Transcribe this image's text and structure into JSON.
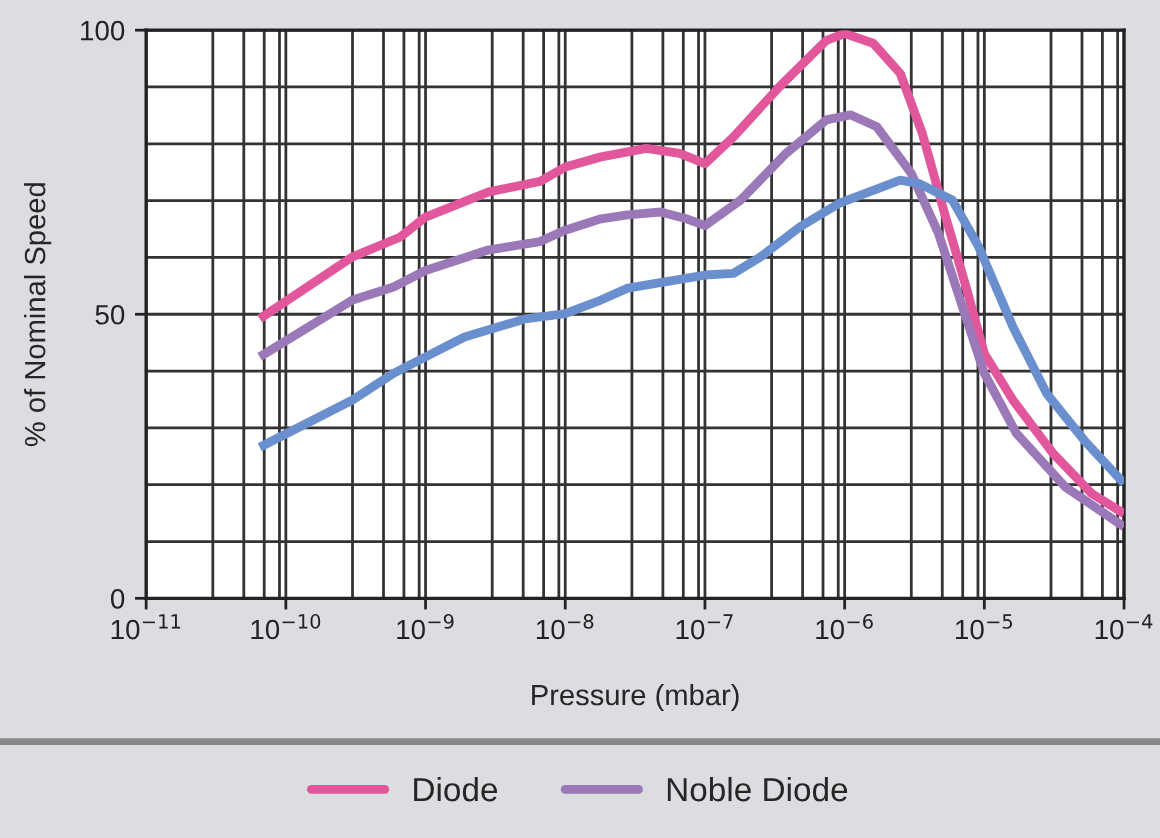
{
  "chart_data": {
    "type": "line",
    "xlabel": "Pressure (mbar)",
    "ylabel": "% of Nominal Speed",
    "log": "x",
    "grid": true,
    "legend": "bottom",
    "line_style": "solid",
    "marker": "none",
    "xlim": [
      1e-11,
      0.0001
    ],
    "ylim": [
      0,
      100
    ],
    "xticks": [
      {
        "value": 1e-11,
        "label": "10$^{−11}$"
      },
      {
        "value": 3e-11,
        "label": null
      },
      {
        "value": 5e-11,
        "label": null
      },
      {
        "value": 7e-11,
        "label": null
      },
      {
        "value": 9e-11,
        "label": null
      },
      {
        "value": 1e-10,
        "label": "10$^{−10}$"
      },
      {
        "value": 3e-10,
        "label": null
      },
      {
        "value": 5e-10,
        "label": null
      },
      {
        "value": 7e-10,
        "label": null
      },
      {
        "value": 9e-10,
        "label": null
      },
      {
        "value": 1e-09,
        "label": "10$^{−9}$"
      },
      {
        "value": 3e-09,
        "label": null
      },
      {
        "value": 5e-09,
        "label": null
      },
      {
        "value": 7e-09,
        "label": null
      },
      {
        "value": 9e-09,
        "label": null
      },
      {
        "value": 1e-08,
        "label": "10$^{−8}$"
      },
      {
        "value": 3e-08,
        "label": null
      },
      {
        "value": 5e-08,
        "label": null
      },
      {
        "value": 7e-08,
        "label": null
      },
      {
        "value": 9e-08,
        "label": null
      },
      {
        "value": 1e-07,
        "label": "10$^{−7}$"
      },
      {
        "value": 3e-07,
        "label": null
      },
      {
        "value": 5e-07,
        "label": null
      },
      {
        "value": 7e-07,
        "label": null
      },
      {
        "value": 9e-07,
        "label": null
      },
      {
        "value": 1e-06,
        "label": "10$^{−6}$"
      },
      {
        "value": 3e-06,
        "label": null
      },
      {
        "value": 5e-06,
        "label": null
      },
      {
        "value": 7e-06,
        "label": null
      },
      {
        "value": 9e-06,
        "label": null
      },
      {
        "value": 1e-05,
        "label": "10$^{−5}$"
      },
      {
        "value": 3e-05,
        "label": null
      },
      {
        "value": 5e-05,
        "label": null
      },
      {
        "value": 7e-05,
        "label": null
      },
      {
        "value": 9e-05,
        "label": null
      },
      {
        "value": 0.0001,
        "label": "10$^{−4}$"
      }
    ],
    "yticks": [
      0,
      {
        "value": 10,
        "label": null
      },
      {
        "value": 20,
        "label": null
      },
      {
        "value": 30,
        "label": null
      },
      {
        "value": 40,
        "label": null
      },
      50,
      {
        "value": 60,
        "label": null
      },
      {
        "value": 70,
        "label": null
      },
      {
        "value": 80,
        "label": null
      },
      {
        "value": 90,
        "label": null
      },
      100
    ],
    "series": [
      {
        "name": "Diode",
        "color": "#e2569b",
        "x": [
          6.5e-11,
          3e-10,
          6.6e-10,
          1e-09,
          2.8e-09,
          6.6e-09,
          1e-08,
          1.8e-08,
          3.8e-08,
          6.6e-08,
          1e-07,
          1.6e-07,
          3.4e-07,
          7.4e-07,
          1e-06,
          1.6e-06,
          2.5e-06,
          3.6e-06,
          5.2e-06,
          7.4e-06,
          1e-05,
          1.6e-05,
          3.1e-05,
          5.9e-05,
          0.0001
        ],
        "values": [
          49.2,
          60.1,
          63.6,
          67.1,
          71.5,
          73.4,
          75.9,
          77.7,
          79.2,
          78.3,
          76.5,
          81.2,
          90.0,
          98.2,
          99.4,
          97.7,
          92.4,
          81.8,
          67.7,
          54.8,
          43.1,
          34.9,
          25.5,
          18.4,
          14.9
        ]
      },
      {
        "name": "Noble Diode",
        "color": "#9b78b8",
        "x": [
          6.5e-11,
          3e-10,
          5.9e-10,
          1e-09,
          2.8e-09,
          6.6e-09,
          1e-08,
          1.8e-08,
          2.8e-08,
          4.8e-08,
          7.4e-08,
          1e-07,
          1.8e-07,
          3.8e-07,
          7.4e-07,
          1.1e-06,
          1.7e-06,
          3e-06,
          4.7e-06,
          6.5e-06,
          1e-05,
          1.7e-05,
          3.8e-05,
          0.0001
        ],
        "values": [
          42.5,
          52.5,
          54.8,
          57.7,
          61.3,
          62.8,
          64.8,
          66.8,
          67.5,
          68.0,
          66.8,
          65.6,
          70.1,
          78.3,
          84.2,
          85.1,
          83.0,
          74.8,
          64.2,
          53.6,
          39.6,
          29.0,
          19.6,
          12.6
        ]
      },
      {
        "color": "#6a8fcf",
        "x": [
          6.5e-11,
          3e-10,
          5.9e-10,
          1e-09,
          1.9e-09,
          5.2e-09,
          1e-08,
          1.8e-08,
          2.8e-08,
          1e-07,
          1.6e-07,
          2.5e-07,
          4.8e-07,
          9.1e-07,
          2.5e-06,
          3.4e-06,
          5.9e-06,
          9.1e-06,
          1.6e-05,
          2.8e-05,
          5.2e-05,
          0.0001
        ],
        "values": [
          26.6,
          34.9,
          39.6,
          42.5,
          46.0,
          49.2,
          50.1,
          52.5,
          54.6,
          56.9,
          57.2,
          60.1,
          65.4,
          69.5,
          73.6,
          73.0,
          70.1,
          61.9,
          47.8,
          36.0,
          27.8,
          20.2
        ]
      }
    ]
  }
}
